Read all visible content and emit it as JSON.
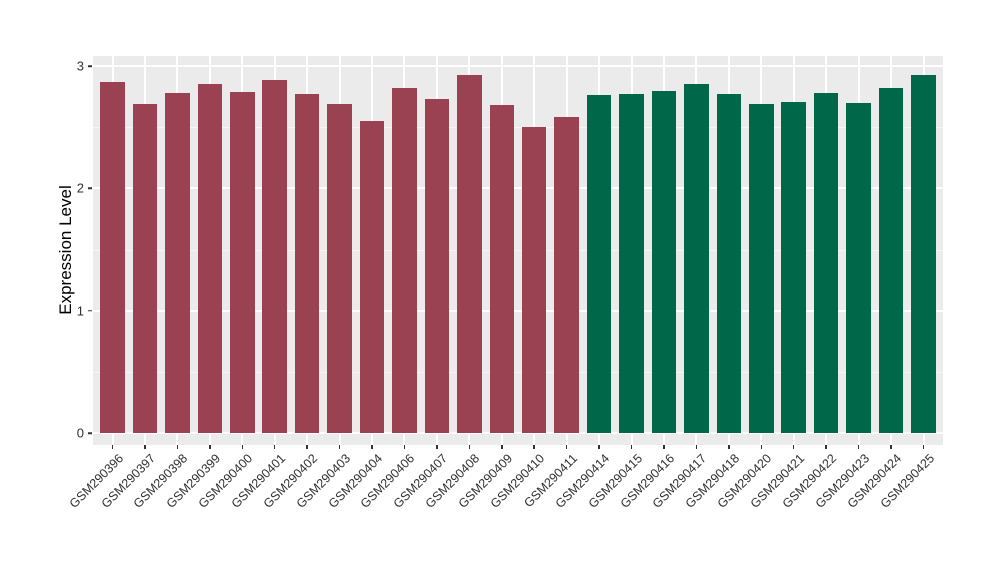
{
  "chart_data": {
    "type": "bar",
    "title": "",
    "xlabel": "",
    "ylabel": "Expression Level",
    "ylim": [
      -0.1,
      3.08
    ],
    "yticks": [
      0,
      1,
      2,
      3
    ],
    "yticks_minor": [
      0.5,
      1.5,
      2.5
    ],
    "grid": "major and minor horizontal white lines, vertical white line at each category center",
    "legend": "none",
    "bars": [
      {
        "label": "GSM290396",
        "value": 2.87,
        "group": "red"
      },
      {
        "label": "GSM290397",
        "value": 2.69,
        "group": "red"
      },
      {
        "label": "GSM290398",
        "value": 2.78,
        "group": "red"
      },
      {
        "label": "GSM290399",
        "value": 2.85,
        "group": "red"
      },
      {
        "label": "GSM290400",
        "value": 2.79,
        "group": "red"
      },
      {
        "label": "GSM290401",
        "value": 2.89,
        "group": "red"
      },
      {
        "label": "GSM290402",
        "value": 2.77,
        "group": "red"
      },
      {
        "label": "GSM290403",
        "value": 2.69,
        "group": "red"
      },
      {
        "label": "GSM290404",
        "value": 2.55,
        "group": "red"
      },
      {
        "label": "GSM290406",
        "value": 2.82,
        "group": "red"
      },
      {
        "label": "GSM290407",
        "value": 2.73,
        "group": "red"
      },
      {
        "label": "GSM290408",
        "value": 2.93,
        "group": "red"
      },
      {
        "label": "GSM290409",
        "value": 2.68,
        "group": "red"
      },
      {
        "label": "GSM290410",
        "value": 2.5,
        "group": "red"
      },
      {
        "label": "GSM290411",
        "value": 2.58,
        "group": "red"
      },
      {
        "label": "GSM290414",
        "value": 2.76,
        "group": "green"
      },
      {
        "label": "GSM290415",
        "value": 2.77,
        "group": "green"
      },
      {
        "label": "GSM290416",
        "value": 2.8,
        "group": "green"
      },
      {
        "label": "GSM290417",
        "value": 2.85,
        "group": "green"
      },
      {
        "label": "GSM290418",
        "value": 2.77,
        "group": "green"
      },
      {
        "label": "GSM290420",
        "value": 2.69,
        "group": "green"
      },
      {
        "label": "GSM290421",
        "value": 2.71,
        "group": "green"
      },
      {
        "label": "GSM290422",
        "value": 2.78,
        "group": "green"
      },
      {
        "label": "GSM290423",
        "value": 2.7,
        "group": "green"
      },
      {
        "label": "GSM290424",
        "value": 2.82,
        "group": "green"
      },
      {
        "label": "GSM290425",
        "value": 2.93,
        "group": "green"
      }
    ],
    "group_colors": {
      "red": "#9A4252",
      "green": "#006748"
    }
  },
  "style": {
    "background": "#FFFFFF",
    "panel_bg": "#EBEBEB",
    "grid_major": "#FFFFFF",
    "grid_minor": "#F6F6F6",
    "tick_mark_color": "#333333",
    "axis_text_color": "#303030",
    "axis_title_color": "#000000"
  }
}
